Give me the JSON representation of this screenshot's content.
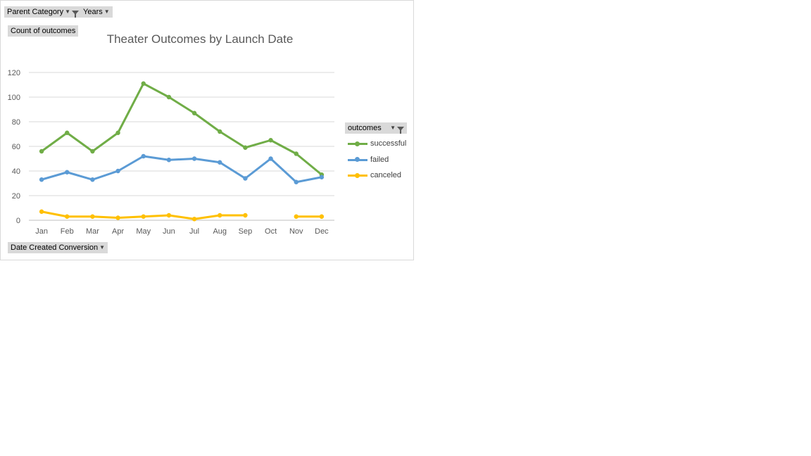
{
  "filters": {
    "parent_category": "Parent Category",
    "years": "Years",
    "count_label": "Count of outcomes",
    "legend_field": "outcomes",
    "axis_field": "Date Created Conversion"
  },
  "chart_data": {
    "type": "line",
    "title": "Theater Outcomes by Launch Date",
    "xlabel": "",
    "ylabel": "",
    "categories": [
      "Jan",
      "Feb",
      "Mar",
      "Apr",
      "May",
      "Jun",
      "Jul",
      "Aug",
      "Sep",
      "Oct",
      "Nov",
      "Dec"
    ],
    "ylim": [
      0,
      120
    ],
    "yticks": [
      "0",
      "20",
      "40",
      "60",
      "80",
      "100",
      "120"
    ],
    "grid": true,
    "legend_position": "right",
    "series": [
      {
        "name": "successful",
        "color": "#70ad47",
        "values": [
          56,
          71,
          56,
          71,
          111,
          100,
          87,
          72,
          59,
          65,
          54,
          37
        ]
      },
      {
        "name": "failed",
        "color": "#5b9bd5",
        "values": [
          33,
          39,
          33,
          40,
          52,
          49,
          50,
          47,
          34,
          50,
          31,
          35
        ]
      },
      {
        "name": "canceled",
        "color": "#ffc000",
        "values": [
          7,
          3,
          3,
          2,
          3,
          4,
          1,
          4,
          4,
          null,
          3,
          3
        ]
      }
    ]
  }
}
